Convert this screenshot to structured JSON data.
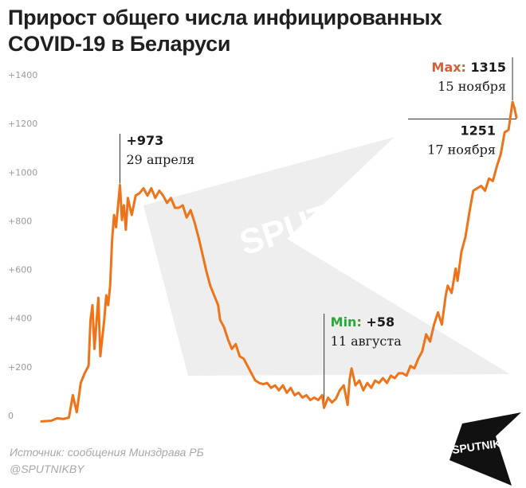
{
  "title": "Прирост общего числа инфицированных COVID-19 в Беларуси",
  "footer": {
    "source": "Источник: сообщения Минздрава РБ",
    "handle": "@SPUTNIKBY"
  },
  "watermark": {
    "text": "SPUTNIK"
  },
  "logo": {
    "text": "SPUTNIK"
  },
  "colors": {
    "line": "#ef7319",
    "max_label": "#d2613a",
    "min_label": "#2aa63a",
    "text": "#1a1a1a",
    "ticks": "#9a9a9a"
  },
  "chart_data": {
    "type": "line",
    "title": "Прирост общего числа инфицированных COVID-19 в Беларуси",
    "xlabel": "",
    "ylabel": "",
    "ylim": [
      0,
      1400
    ],
    "grid": false,
    "y_ticks": [
      {
        "value": 0,
        "label": "0"
      },
      {
        "value": 200,
        "label": "+200"
      },
      {
        "value": 400,
        "label": "+400"
      },
      {
        "value": 600,
        "label": "+600"
      },
      {
        "value": 800,
        "label": "+800"
      },
      {
        "value": 1000,
        "label": "+1000"
      },
      {
        "value": 1200,
        "label": "+1200"
      },
      {
        "value": 1400,
        "label": "+1400"
      }
    ],
    "x_start": "2020-03-20",
    "x_end": "2020-11-17",
    "series": [
      {
        "name": "",
        "points": [
          [
            "2020-03-20",
            2
          ],
          [
            "2020-03-25",
            5
          ],
          [
            "2020-03-28",
            15
          ],
          [
            "2020-03-31",
            12
          ],
          [
            "2020-04-03",
            18
          ],
          [
            "2020-04-05",
            110
          ],
          [
            "2020-04-07",
            40
          ],
          [
            "2020-04-09",
            160
          ],
          [
            "2020-04-11",
            200
          ],
          [
            "2020-04-13",
            230
          ],
          [
            "2020-04-14",
            420
          ],
          [
            "2020-04-15",
            480
          ],
          [
            "2020-04-16",
            300
          ],
          [
            "2020-04-18",
            510
          ],
          [
            "2020-04-19",
            270
          ],
          [
            "2020-04-21",
            420
          ],
          [
            "2020-04-22",
            520
          ],
          [
            "2020-04-23",
            480
          ],
          [
            "2020-04-24",
            560
          ],
          [
            "2020-04-25",
            750
          ],
          [
            "2020-04-26",
            850
          ],
          [
            "2020-04-27",
            800
          ],
          [
            "2020-04-29",
            973
          ],
          [
            "2020-04-30",
            830
          ],
          [
            "2020-05-01",
            890
          ],
          [
            "2020-05-02",
            790
          ],
          [
            "2020-05-03",
            920
          ],
          [
            "2020-05-05",
            850
          ],
          [
            "2020-05-07",
            930
          ],
          [
            "2020-05-09",
            940
          ],
          [
            "2020-05-11",
            960
          ],
          [
            "2020-05-13",
            930
          ],
          [
            "2020-05-15",
            960
          ],
          [
            "2020-05-17",
            920
          ],
          [
            "2020-05-19",
            950
          ],
          [
            "2020-05-21",
            930
          ],
          [
            "2020-05-23",
            900
          ],
          [
            "2020-05-25",
            920
          ],
          [
            "2020-05-27",
            880
          ],
          [
            "2020-05-29",
            880
          ],
          [
            "2020-05-31",
            890
          ],
          [
            "2020-06-02",
            840
          ],
          [
            "2020-06-04",
            870
          ],
          [
            "2020-06-06",
            820
          ],
          [
            "2020-06-08",
            760
          ],
          [
            "2020-06-10",
            690
          ],
          [
            "2020-06-12",
            620
          ],
          [
            "2020-06-14",
            560
          ],
          [
            "2020-06-16",
            520
          ],
          [
            "2020-06-18",
            480
          ],
          [
            "2020-06-19",
            420
          ],
          [
            "2020-06-21",
            390
          ],
          [
            "2020-06-23",
            340
          ],
          [
            "2020-06-25",
            300
          ],
          [
            "2020-06-27",
            320
          ],
          [
            "2020-06-29",
            270
          ],
          [
            "2020-07-01",
            260
          ],
          [
            "2020-07-03",
            230
          ],
          [
            "2020-07-05",
            200
          ],
          [
            "2020-07-07",
            170
          ],
          [
            "2020-07-09",
            160
          ],
          [
            "2020-07-11",
            155
          ],
          [
            "2020-07-13",
            160
          ],
          [
            "2020-07-15",
            140
          ],
          [
            "2020-07-17",
            150
          ],
          [
            "2020-07-19",
            130
          ],
          [
            "2020-07-21",
            150
          ],
          [
            "2020-07-23",
            120
          ],
          [
            "2020-07-25",
            140
          ],
          [
            "2020-07-27",
            110
          ],
          [
            "2020-07-29",
            120
          ],
          [
            "2020-07-31",
            100
          ],
          [
            "2020-08-02",
            110
          ],
          [
            "2020-08-04",
            90
          ],
          [
            "2020-08-06",
            100
          ],
          [
            "2020-08-08",
            90
          ],
          [
            "2020-08-10",
            110
          ],
          [
            "2020-08-11",
            58
          ],
          [
            "2020-08-13",
            100
          ],
          [
            "2020-08-15",
            80
          ],
          [
            "2020-08-17",
            95
          ],
          [
            "2020-08-19",
            130
          ],
          [
            "2020-08-21",
            150
          ],
          [
            "2020-08-23",
            70
          ],
          [
            "2020-08-24",
            175
          ],
          [
            "2020-08-25",
            220
          ],
          [
            "2020-08-27",
            150
          ],
          [
            "2020-08-29",
            170
          ],
          [
            "2020-08-31",
            130
          ],
          [
            "2020-09-02",
            160
          ],
          [
            "2020-09-04",
            140
          ],
          [
            "2020-09-06",
            170
          ],
          [
            "2020-09-08",
            160
          ],
          [
            "2020-09-10",
            180
          ],
          [
            "2020-09-12",
            160
          ],
          [
            "2020-09-14",
            190
          ],
          [
            "2020-09-16",
            180
          ],
          [
            "2020-09-18",
            200
          ],
          [
            "2020-09-20",
            200
          ],
          [
            "2020-09-22",
            190
          ],
          [
            "2020-09-24",
            230
          ],
          [
            "2020-09-26",
            220
          ],
          [
            "2020-09-28",
            260
          ],
          [
            "2020-09-30",
            290
          ],
          [
            "2020-10-02",
            360
          ],
          [
            "2020-10-04",
            330
          ],
          [
            "2020-10-06",
            400
          ],
          [
            "2020-10-08",
            450
          ],
          [
            "2020-10-10",
            400
          ],
          [
            "2020-10-12",
            520
          ],
          [
            "2020-10-13",
            560
          ],
          [
            "2020-10-15",
            530
          ],
          [
            "2020-10-17",
            630
          ],
          [
            "2020-10-18",
            580
          ],
          [
            "2020-10-20",
            700
          ],
          [
            "2020-10-22",
            760
          ],
          [
            "2020-10-24",
            860
          ],
          [
            "2020-10-26",
            950
          ],
          [
            "2020-10-28",
            960
          ],
          [
            "2020-10-30",
            970
          ],
          [
            "2020-11-01",
            950
          ],
          [
            "2020-11-03",
            1000
          ],
          [
            "2020-11-05",
            990
          ],
          [
            "2020-11-07",
            1050
          ],
          [
            "2020-11-09",
            1100
          ],
          [
            "2020-11-11",
            1190
          ],
          [
            "2020-11-13",
            1200
          ],
          [
            "2020-11-15",
            1315
          ],
          [
            "2020-11-16",
            1290
          ],
          [
            "2020-11-17",
            1251
          ]
        ]
      }
    ],
    "annotations": [
      {
        "kind": "peak",
        "date": "2020-04-29",
        "value": 973,
        "value_label": "+973",
        "date_label": "29 апреля"
      },
      {
        "kind": "min",
        "date": "2020-08-11",
        "value": 58,
        "prefix": "Min:",
        "value_label": "+58",
        "date_label": "11 августа"
      },
      {
        "kind": "max",
        "date": "2020-11-15",
        "value": 1315,
        "prefix": "Max:",
        "value_label": "1315",
        "date_label": "15 ноября"
      },
      {
        "kind": "last",
        "date": "2020-11-17",
        "value": 1251,
        "value_label": "1251",
        "date_label": "17 ноября"
      }
    ]
  }
}
